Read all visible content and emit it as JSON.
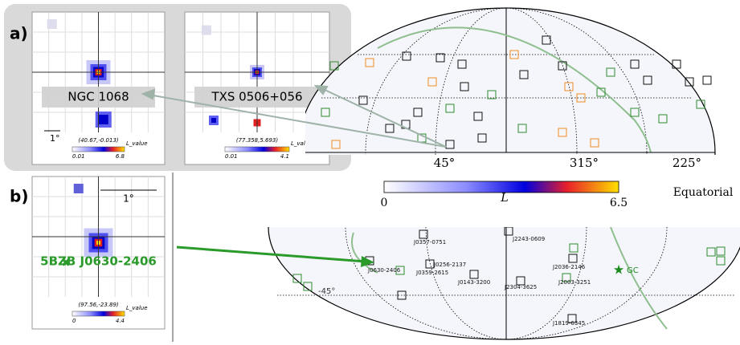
{
  "panel_a": {
    "label": "a)",
    "insets": [
      {
        "name": "NGC 1068",
        "scale": "1°",
        "coords": "(40.67,-0.013)",
        "colorbar_title": "L_value",
        "colorbar_min": 0.01,
        "colorbar_max": 6.8
      },
      {
        "name": "TXS 0506+056",
        "coords": "(77.358,5.693)",
        "colorbar_title": "L_value",
        "colorbar_min": 0.01,
        "colorbar_max": 4.1
      }
    ],
    "sky_map": {
      "ra_labels": [
        "45°",
        "315°",
        "225°"
      ]
    },
    "colorbar": {
      "min": 0,
      "symbol": "L",
      "max": 6.5
    },
    "frame": "Equatorial"
  },
  "panel_b": {
    "label": "b)",
    "inset": {
      "name": "5BZB J0630-2406",
      "scale": "1°",
      "coords": "(97.56,-23.89)",
      "colorbar_title": "L_value",
      "colorbar_min": 0,
      "colorbar_max": 4.4
    },
    "sources": [
      "J0357-0751",
      "J2243-0609",
      "J0256-2137",
      "J0359-2615",
      "J0630-2406",
      "J2036-2146",
      "J0143-3200",
      "J2304-3625",
      "J2003-3251",
      "J1819-6345"
    ],
    "gc": "GC",
    "dec_label": "-45°"
  }
}
